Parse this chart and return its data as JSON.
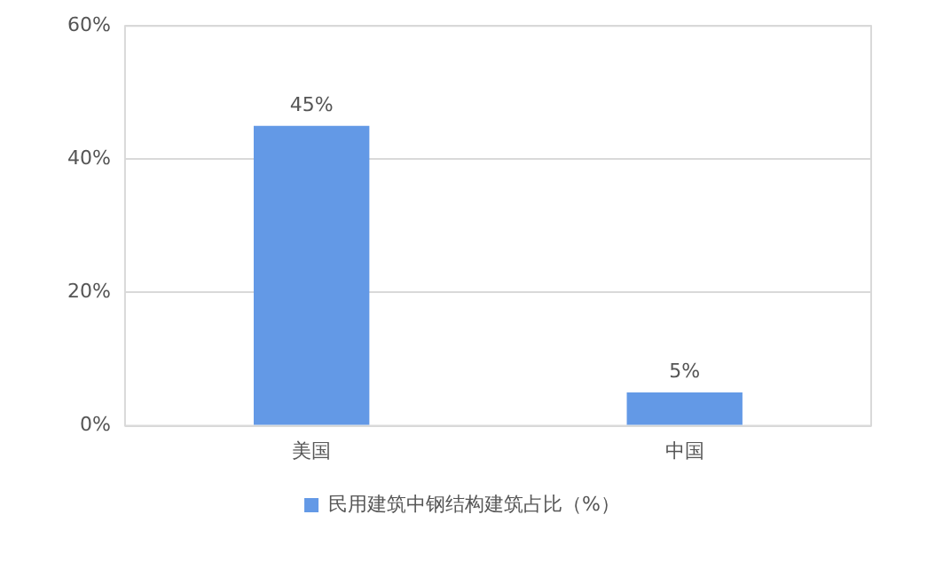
{
  "chart_data": {
    "type": "bar",
    "categories": [
      "美国",
      "中国"
    ],
    "series": [
      {
        "name": "民用建筑中钢结构建筑占比（%）",
        "color": "#6399e6",
        "values": [
          45,
          5
        ],
        "value_labels": [
          "45%",
          "5%"
        ]
      }
    ],
    "ylim": [
      0,
      60
    ],
    "yticks": [
      {
        "value": 0,
        "label": "0%"
      },
      {
        "value": 20,
        "label": "20%"
      },
      {
        "value": 40,
        "label": "40%"
      },
      {
        "value": 60,
        "label": "60%"
      }
    ],
    "grid": "y",
    "legend": "bottom"
  }
}
